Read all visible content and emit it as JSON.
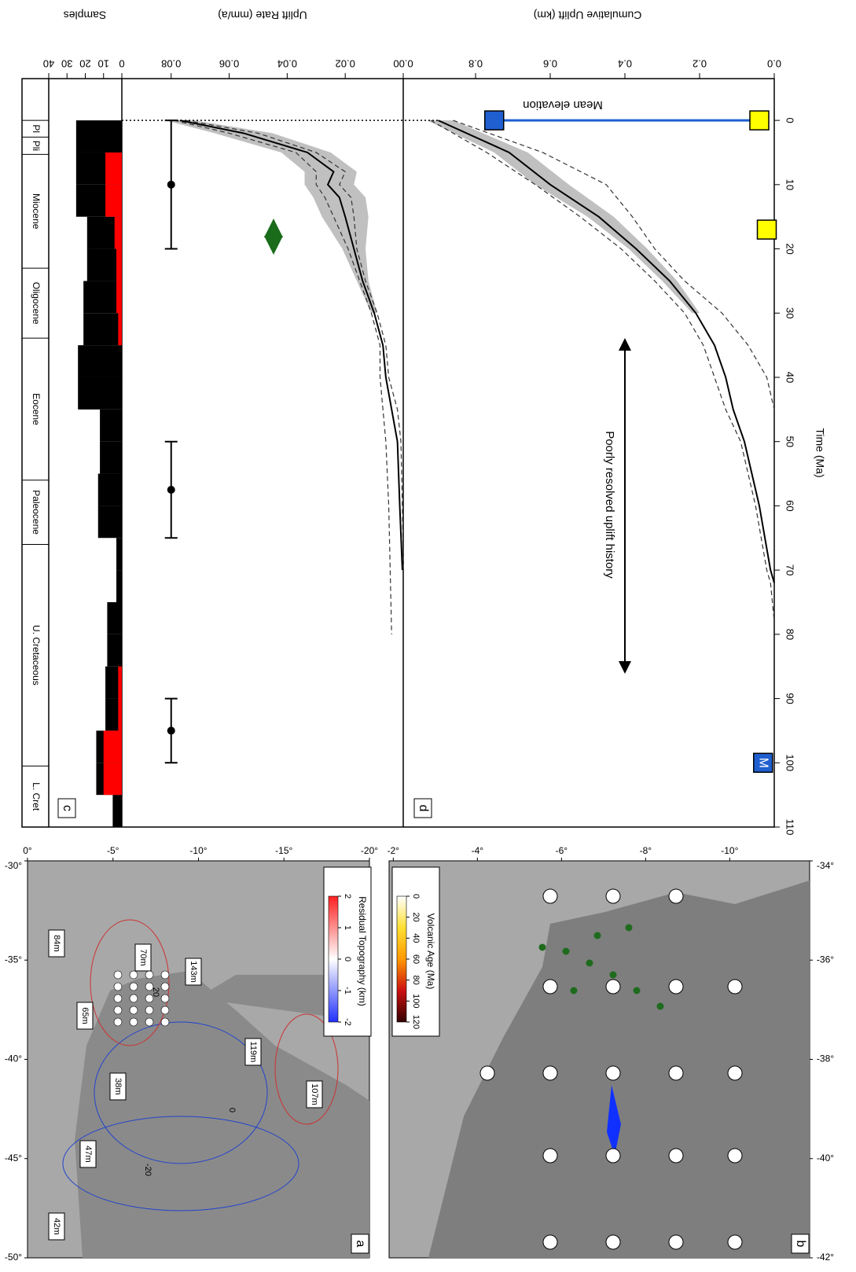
{
  "chart_data": [
    {
      "type": "timescale",
      "xlim": [
        -6.5,
        110
      ],
      "periods": [
        {
          "name": "Pl",
          "start": 0,
          "end": 2.6
        },
        {
          "name": "Pli",
          "start": 2.6,
          "end": 5.3
        },
        {
          "name": "Miocene",
          "start": 5.3,
          "end": 23
        },
        {
          "name": "Oligocene",
          "start": 23,
          "end": 33.9
        },
        {
          "name": "Eocene",
          "start": 33.9,
          "end": 56
        },
        {
          "name": "Paleocene",
          "start": 56,
          "end": 66
        },
        {
          "name": "U. Cretaceous",
          "start": 66,
          "end": 100.5
        },
        {
          "name": "L. Cret",
          "start": 100.5,
          "end": 110
        }
      ]
    },
    {
      "type": "histogram",
      "ylabel": "Samples",
      "xlim": [
        -6.5,
        110
      ],
      "bins": [
        0,
        5,
        10,
        15,
        20,
        25,
        30,
        35,
        40,
        45,
        50,
        55,
        60,
        65,
        70,
        75,
        80,
        85,
        90,
        95,
        100,
        105,
        110
      ],
      "series": [
        {
          "color": "#000000",
          "values": [
            25,
            25,
            25,
            19,
            19,
            21,
            21,
            24,
            24,
            12,
            12,
            13,
            13,
            3,
            3,
            8,
            8,
            9,
            9,
            14,
            14,
            5
          ]
        },
        {
          "color": "#ff0000",
          "values": [
            0,
            9,
            9,
            4,
            3,
            3,
            2,
            0,
            0,
            0,
            0,
            0,
            0,
            0,
            0,
            0,
            0,
            2,
            2,
            10,
            10,
            0
          ]
        }
      ],
      "ylim": [
        0,
        40
      ],
      "yticks": [
        0,
        10,
        20,
        30,
        40
      ]
    },
    {
      "type": "line",
      "panel": "c",
      "ylabel": "Uplift Rate (mm/a)",
      "xlim": [
        -6.5,
        110
      ],
      "ylim": [
        0,
        0.097
      ],
      "yticks": [
        {
          "value": 0,
          "label": "0.00"
        },
        0.02,
        0.04,
        0.06,
        0.08
      ],
      "band": {
        "color": "#c0c0c0",
        "x": [
          0,
          2,
          5,
          8,
          10,
          12,
          15,
          20,
          25,
          30
        ],
        "low": [
          0.072,
          0.045,
          0.025,
          0.016,
          0.017,
          0.013,
          0.012,
          0.013,
          0.012,
          0.009
        ],
        "high": [
          0.082,
          0.065,
          0.042,
          0.034,
          0.034,
          0.031,
          0.028,
          0.021,
          0.016,
          0.011
        ]
      },
      "series": [
        {
          "color": "#000000",
          "dash": false,
          "x": [
            0,
            2,
            5,
            8,
            10,
            12,
            15,
            20,
            25,
            30,
            35,
            40,
            45,
            50,
            60,
            70,
            80
          ],
          "values": [
            0.077,
            0.055,
            0.033,
            0.024,
            0.026,
            0.022,
            0.02,
            0.017,
            0.014,
            0.01,
            0.007,
            0.006,
            0.004,
            0.002,
            0.0012,
            0.0003,
            null
          ]
        },
        {
          "color": "#333333",
          "dash": true,
          "x": [
            0,
            2,
            5,
            8,
            10,
            12,
            15,
            20,
            25,
            30,
            35,
            40,
            45,
            50,
            60,
            70,
            80
          ],
          "values": [
            0.079,
            0.06,
            0.037,
            0.03,
            0.03,
            0.027,
            0.024,
            0.019,
            0.015,
            0.011,
            0.008,
            0.008,
            0.007,
            0.006,
            0.005,
            0.0045,
            0.004
          ]
        },
        {
          "color": "#333333",
          "dash": true,
          "x": [
            0,
            2,
            5,
            8,
            10,
            12,
            15,
            20,
            25,
            30,
            35,
            40,
            45,
            50,
            60,
            70,
            80
          ],
          "values": [
            0.075,
            0.05,
            0.03,
            0.02,
            0.022,
            0.018,
            0.017,
            0.016,
            0.013,
            0.009,
            0.006,
            0.005,
            0.002,
            0.0008,
            0.0003,
            0.0,
            null
          ]
        }
      ],
      "errorbars": {
        "x": [
          10,
          57.5,
          95
        ],
        "x_min": [
          0,
          50,
          90
        ],
        "x_max": [
          20,
          65,
          100
        ],
        "values": [
          0.08,
          0.08,
          0.08
        ]
      }
    },
    {
      "type": "line",
      "panel": "d",
      "ylabel": "Cumulative Uplift (km)",
      "xlabel": "Time (Ma)",
      "xlim": [
        -6.5,
        110
      ],
      "ylim": [
        0,
        1
      ],
      "xticks": [
        0,
        10,
        20,
        30,
        40,
        50,
        60,
        70,
        80,
        90,
        100,
        110
      ],
      "yticks": [
        {
          "value": 0,
          "label": "0.0"
        },
        0.2,
        0.4,
        0.6,
        0.8
      ],
      "band": {
        "color": "#c0c0c0",
        "x": [
          0,
          5,
          10,
          15,
          20,
          25,
          30
        ],
        "low": [
          0.86,
          0.66,
          0.55,
          0.43,
          0.34,
          0.26,
          0.2
        ],
        "high": [
          0.93,
          0.75,
          0.64,
          0.5,
          0.39,
          0.3,
          0.22
        ]
      },
      "series": [
        {
          "color": "#000000",
          "dash": false,
          "x": [
            0,
            5,
            10,
            15,
            20,
            25,
            30,
            35,
            40,
            45,
            50,
            60,
            70,
            72,
            78
          ],
          "values": [
            0.9,
            0.71,
            0.6,
            0.47,
            0.37,
            0.28,
            0.21,
            0.16,
            0.13,
            0.11,
            0.08,
            0.04,
            0.01,
            0.0,
            null
          ]
        },
        {
          "color": "#333333",
          "dash": true,
          "x": [
            0,
            5,
            10,
            15,
            20,
            25,
            30,
            35,
            40,
            45,
            50,
            60,
            70,
            72,
            78
          ],
          "values": [
            0.92,
            0.77,
            0.64,
            0.52,
            0.41,
            0.32,
            0.24,
            0.19,
            0.16,
            0.13,
            0.09,
            0.05,
            0.02,
            0.01,
            0.0
          ]
        },
        {
          "color": "#333333",
          "dash": true,
          "x": [
            0,
            5,
            10,
            15,
            20,
            25,
            30,
            35,
            40,
            45,
            50,
            60,
            70,
            72,
            78
          ],
          "values": [
            0.86,
            0.62,
            0.45,
            0.38,
            0.32,
            0.24,
            0.14,
            0.07,
            0.02,
            0.0,
            null,
            null,
            null,
            null,
            null
          ]
        }
      ],
      "markers": [
        {
          "x": 0,
          "value": 0.75,
          "color": "#1f5fd0"
        },
        {
          "x": 0,
          "value": 0.04,
          "color": "#ffff00"
        },
        {
          "x": 17,
          "value": 0.02,
          "color": "#ffff00"
        },
        {
          "x": 100,
          "value": 0.03,
          "color": "#1f5fd0",
          "label": "M"
        }
      ],
      "annotations": [
        "Poorly resolved uplift history",
        "Mean elevation"
      ]
    }
  ],
  "maps": [
    {
      "label": "a",
      "lonlim": [
        -50,
        -30
      ],
      "latlim": [
        -20,
        0
      ],
      "lon_ticks": [
        {
          "value": -50,
          "label": "-50°"
        },
        {
          "value": -45,
          "label": "-45°"
        },
        {
          "value": -40,
          "label": "-40°"
        },
        {
          "value": -35,
          "label": "-35°"
        },
        {
          "value": -30,
          "label": "-30°"
        }
      ],
      "lat_ticks": [
        {
          "value": 0,
          "label": "0°"
        },
        {
          "value": -5,
          "label": "-5°"
        },
        {
          "value": -10,
          "label": "-10°"
        },
        {
          "value": -15,
          "label": "-15°"
        },
        {
          "value": -20,
          "label": "-20°"
        }
      ],
      "colorbar": {
        "title": "Residual Topography (km)",
        "ticks": [
          -2,
          -1,
          0,
          1,
          2
        ]
      },
      "labels": [
        "42m",
        "47m",
        "38m",
        "65m",
        "84m",
        "70m",
        "143m",
        "119m",
        "107m",
        "20",
        "0",
        "-20"
      ]
    },
    {
      "label": "b",
      "lonlim": [
        -42,
        -34
      ],
      "latlim": [
        -11.9,
        -1.9
      ],
      "lon_ticks": [
        {
          "value": -42,
          "label": "-42°"
        },
        {
          "value": -40,
          "label": "-40°"
        },
        {
          "value": -38,
          "label": "-38°"
        },
        {
          "value": -36,
          "label": "-36°"
        },
        {
          "value": -34,
          "label": "-34°"
        }
      ],
      "lat_ticks": [
        {
          "value": -2,
          "label": "-2°"
        },
        {
          "value": -4,
          "label": "-4°"
        },
        {
          "value": -6,
          "label": "-6°"
        },
        {
          "value": -8,
          "label": "-8°"
        },
        {
          "value": -10,
          "label": "-10°"
        }
      ],
      "colorbar": {
        "title": "Volcanic Age (Ma)",
        "ticks": [
          0,
          20,
          40,
          60,
          80,
          100,
          120
        ]
      },
      "labels": []
    }
  ]
}
